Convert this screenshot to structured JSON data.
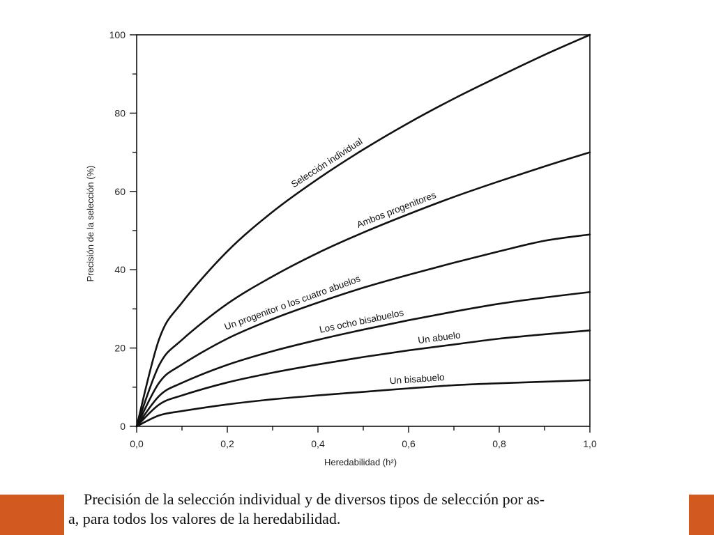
{
  "chart_data": {
    "type": "line",
    "xlabel": "Heredabilidad (h²)",
    "ylabel": "Precisión de la selección (%)",
    "xlim": [
      0,
      1
    ],
    "ylim": [
      0,
      100
    ],
    "x_ticks": [
      "0,0",
      "0,2",
      "0,4",
      "0,6",
      "0,8",
      "1,0"
    ],
    "x_tick_values": [
      0,
      0.2,
      0.4,
      0.6,
      0.8,
      1.0
    ],
    "y_ticks": [
      "0",
      "20",
      "40",
      "60",
      "80",
      "100"
    ],
    "y_tick_values": [
      0,
      20,
      40,
      60,
      80,
      100
    ],
    "grid": false,
    "legend": "none (curves labeled inline)",
    "x": [
      0,
      0.05,
      0.1,
      0.2,
      0.3,
      0.4,
      0.5,
      0.6,
      0.7,
      0.8,
      0.9,
      1.0
    ],
    "series": [
      {
        "name": "Selección individual",
        "values": [
          0,
          22.4,
          31.6,
          44.7,
          54.8,
          63.2,
          70.7,
          77.5,
          83.7,
          89.4,
          94.9,
          100
        ]
      },
      {
        "name": "Ambos progenitores",
        "values": [
          0,
          15.7,
          22.1,
          31.3,
          38.3,
          44.3,
          49.5,
          54.2,
          58.6,
          62.6,
          66.4,
          70.0
        ]
      },
      {
        "name": "Un progenitor o los cuatro abuelos",
        "values": [
          0,
          11.2,
          15.8,
          22.4,
          27.4,
          31.6,
          35.4,
          38.7,
          41.8,
          44.7,
          47.4,
          49.0
        ]
      },
      {
        "name": "Los ocho bisabuelos",
        "values": [
          0,
          7.8,
          11.1,
          15.7,
          19.2,
          22.1,
          24.7,
          27.1,
          29.3,
          31.3,
          32.9,
          34.3
        ]
      },
      {
        "name": "Un abuelo",
        "values": [
          0,
          5.6,
          7.9,
          11.2,
          13.7,
          15.8,
          17.7,
          19.4,
          20.9,
          22.4,
          23.5,
          24.5
        ]
      },
      {
        "name": "Un bisabuelo",
        "values": [
          0,
          2.8,
          3.9,
          5.6,
          6.9,
          7.9,
          8.8,
          9.7,
          10.5,
          11.0,
          11.4,
          11.8
        ]
      }
    ]
  },
  "caption": {
    "line1": "Precisión de la selección individual y de diversos tipos de selección por as-",
    "line2": "a, para todos los valores de la heredabilidad."
  },
  "colors": {
    "accent": "#d35a1e",
    "ink": "#111111"
  }
}
